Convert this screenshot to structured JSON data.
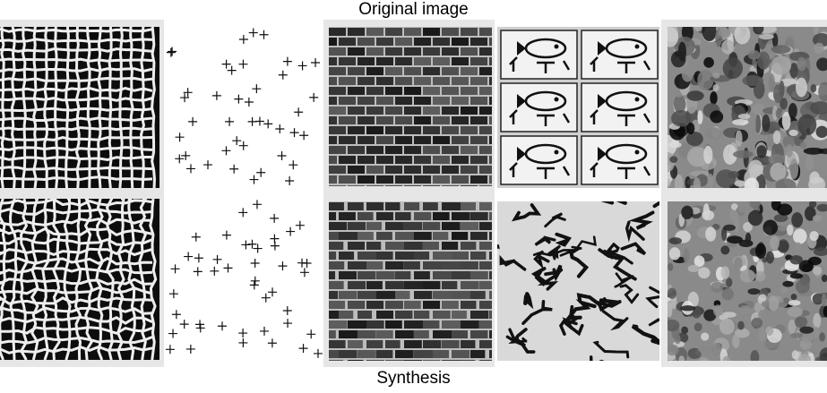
{
  "labels": {
    "top": "Original image",
    "bottom": "Synthesis"
  },
  "panels": [
    {
      "id": "mesh",
      "original": "woven-mesh-texture",
      "synthesis": "synthesized-woven-mesh-texture"
    },
    {
      "id": "crosses",
      "original": "scattered-plus-signs",
      "synthesis": "synthesized-plus-signs"
    },
    {
      "id": "brick",
      "original": "brick-wall-texture",
      "synthesis": "synthesized-brick-wall-texture"
    },
    {
      "id": "fish",
      "original": "fish-glyph-pattern",
      "synthesis": "synthesized-glyph-pattern"
    },
    {
      "id": "crowd",
      "original": "crowd-photo",
      "synthesis": "synthesized-crowd-texture"
    }
  ]
}
